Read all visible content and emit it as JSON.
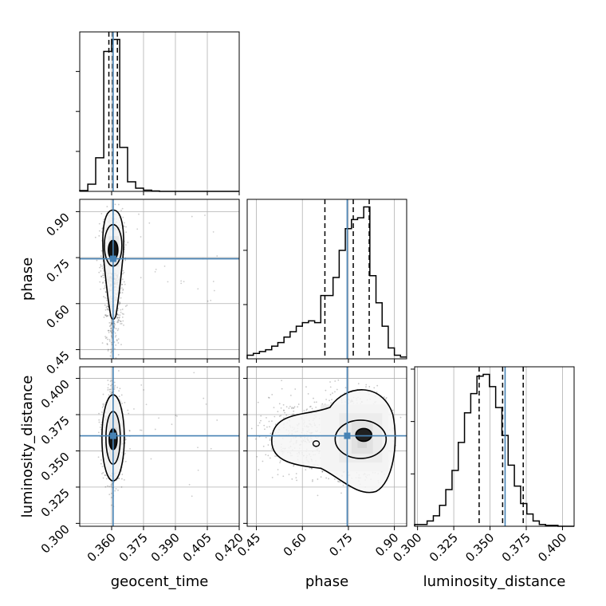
{
  "chart_data": {
    "type": "corner",
    "params": [
      "geocent_time",
      "phase",
      "luminosity_distance"
    ],
    "truths": {
      "geocent_time": 0.3607,
      "phase": 0.7462,
      "luminosity_distance": 0.3604
    },
    "axes": {
      "geocent_time": {
        "label": "geocent_time",
        "range": [
          0.345,
          0.42
        ],
        "ticks": [
          0.36,
          0.375,
          0.39,
          0.405,
          0.42
        ],
        "tick_labels": [
          "0.360",
          "0.375",
          "0.390",
          "0.405",
          "0.420"
        ]
      },
      "phase": {
        "label": "phase",
        "range": [
          0.42,
          0.94
        ],
        "ticks": [
          0.45,
          0.6,
          0.75,
          0.9
        ],
        "tick_labels": [
          "0.45",
          "0.60",
          "0.75",
          "0.90"
        ]
      },
      "luminosity_distance": {
        "label": "luminosity_distance",
        "range": [
          0.298,
          0.408
        ],
        "ticks": [
          0.3,
          0.325,
          0.35,
          0.375,
          0.4
        ],
        "tick_labels": [
          "0.300",
          "0.325",
          "0.350",
          "0.375",
          "0.400"
        ]
      }
    },
    "histograms": {
      "geocent_time": {
        "bin_edges": [
          0.345,
          0.3488,
          0.3525,
          0.3563,
          0.36,
          0.3638,
          0.3675,
          0.3713,
          0.375,
          0.3788,
          0.3825,
          0.42
        ],
        "counts": [
          0.1,
          0.9,
          4.2,
          17.5,
          19.0,
          5.5,
          1.2,
          0.4,
          0.15,
          0.05,
          0.0
        ],
        "quantiles": [
          0.3587,
          0.3605,
          0.3627
        ]
      },
      "phase": {
        "bin_edges": [
          0.42,
          0.44,
          0.46,
          0.48,
          0.5,
          0.52,
          0.54,
          0.56,
          0.58,
          0.6,
          0.62,
          0.64,
          0.66,
          0.68,
          0.7,
          0.72,
          0.74,
          0.76,
          0.78,
          0.8,
          0.82,
          0.84,
          0.86,
          0.88,
          0.9,
          0.92,
          0.94
        ],
        "counts": [
          0.2,
          0.3,
          0.4,
          0.5,
          0.7,
          0.9,
          1.2,
          1.5,
          1.8,
          2.0,
          2.1,
          2.0,
          3.5,
          3.5,
          4.5,
          6.0,
          7.2,
          7.7,
          7.8,
          8.4,
          4.6,
          3.1,
          1.8,
          0.6,
          0.2,
          0.1
        ],
        "quantiles": [
          0.6734,
          0.7659,
          0.8179
        ]
      },
      "luminosity_distance": {
        "bin_edges": [
          0.298,
          0.3023,
          0.3066,
          0.3109,
          0.3152,
          0.3195,
          0.3238,
          0.3281,
          0.3324,
          0.3367,
          0.341,
          0.3453,
          0.3496,
          0.3539,
          0.3582,
          0.3625,
          0.3668,
          0.3711,
          0.3754,
          0.3797,
          0.384,
          0.3883,
          0.3926,
          0.3969,
          0.4012,
          0.408
        ],
        "counts": [
          0.1,
          0.1,
          0.3,
          0.6,
          1.2,
          2.1,
          3.2,
          4.8,
          6.5,
          7.6,
          8.6,
          8.7,
          8.0,
          6.8,
          5.2,
          3.5,
          2.3,
          1.3,
          0.7,
          0.3,
          0.1,
          0.05,
          0.05,
          0.0,
          0.0
        ],
        "quantiles": [
          0.3425,
          0.3587,
          0.3729
        ]
      }
    },
    "posterior_2d": {
      "phase_vs_geocent_time": {
        "x_mean": 0.3607,
        "x_sd": 0.0022,
        "y_peak": 0.785,
        "y_tail_to": 0.43,
        "correlation": 0.0
      },
      "luminosity_distance_vs_geocent_time": {
        "x_mean": 0.3607,
        "x_sd": 0.0022,
        "y_mean": 0.359,
        "y_sd": 0.014
      },
      "luminosity_distance_vs_phase": {
        "x_peak": 0.8,
        "x_tail_to": 0.45,
        "y_mean": 0.359,
        "y_sd": 0.014
      }
    },
    "truth_color": "#4682b4",
    "grid": true
  }
}
